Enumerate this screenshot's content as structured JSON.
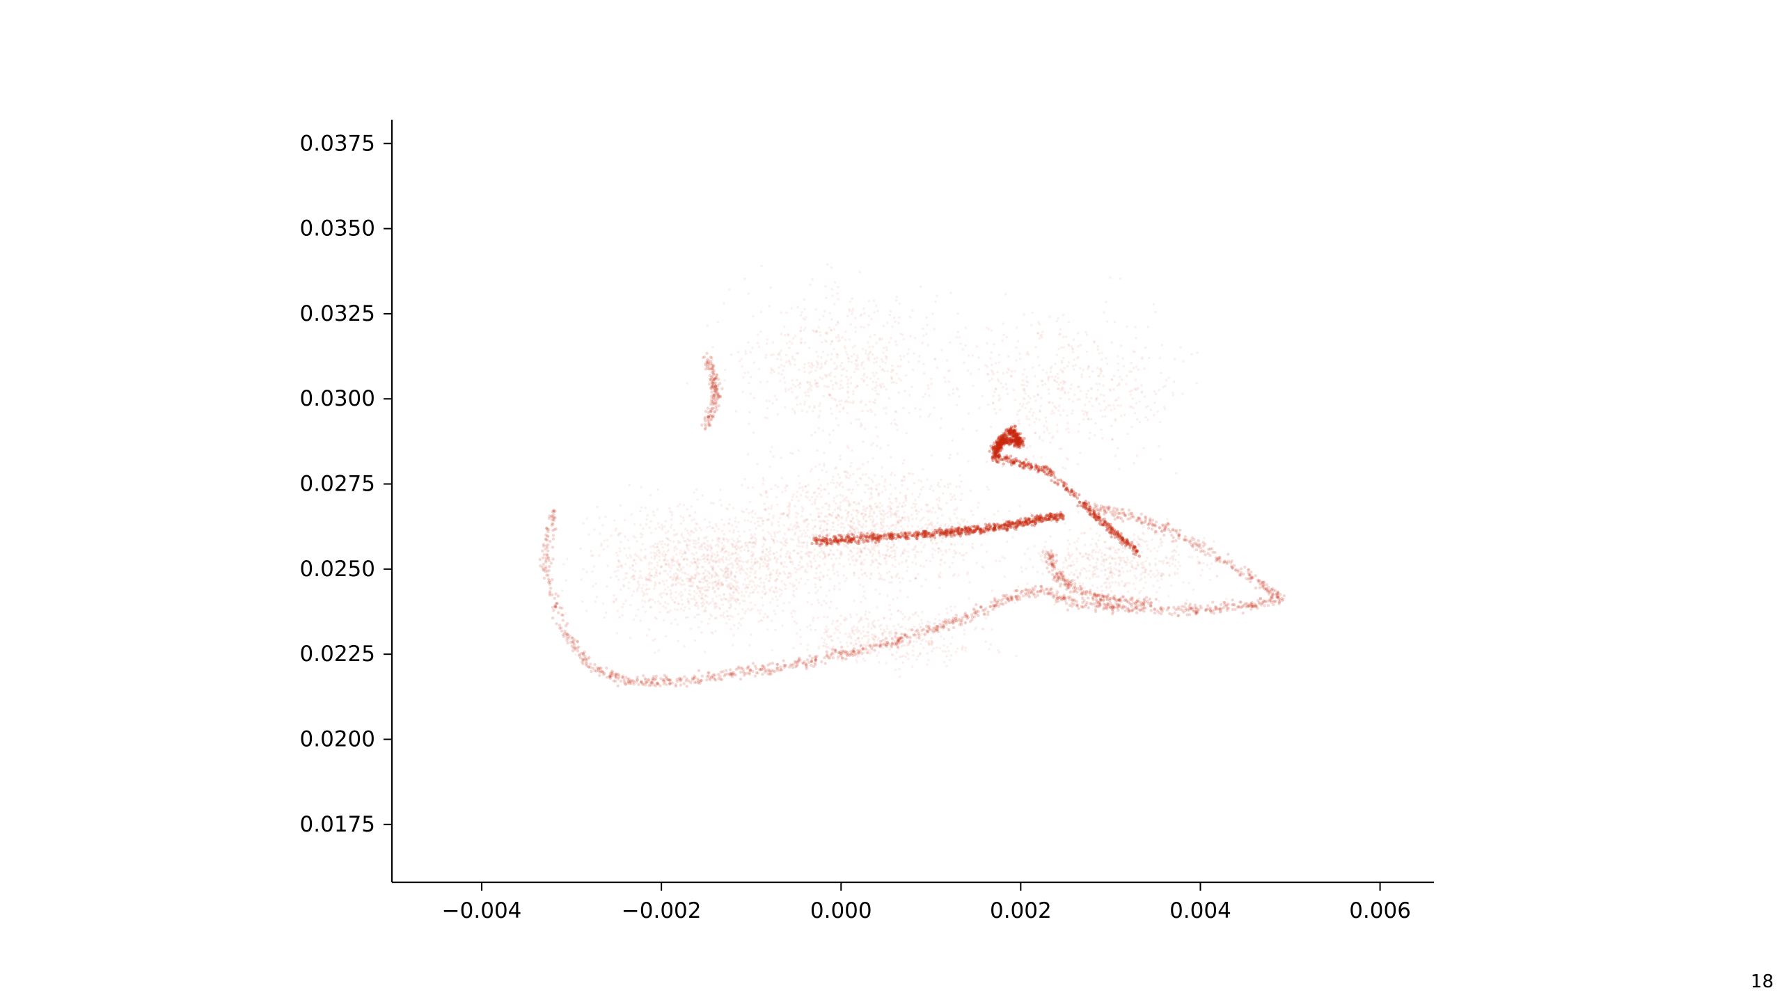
{
  "page": {
    "number": "18"
  },
  "chart_data": {
    "type": "scatter",
    "title": "",
    "xlabel": "",
    "ylabel": "",
    "xlim": [
      -0.005,
      0.0066
    ],
    "ylim": [
      0.0158,
      0.0382
    ],
    "xticks": [
      -0.004,
      -0.002,
      0.0,
      0.002,
      0.004,
      0.006
    ],
    "xtick_labels": [
      "−0.004",
      "−0.002",
      "0.000",
      "0.002",
      "0.004",
      "0.006"
    ],
    "yticks": [
      0.0175,
      0.02,
      0.0225,
      0.025,
      0.0275,
      0.03,
      0.0325,
      0.035,
      0.0375
    ],
    "ytick_labels": [
      "0.0175",
      "0.0200",
      "0.0225",
      "0.0250",
      "0.0275",
      "0.0300",
      "0.0325",
      "0.0350",
      "0.0375"
    ],
    "grid": false,
    "spines": "left-bottom",
    "point_color": "#c8290f",
    "description_points_approx": "dense cloud of semi-transparent points",
    "series": [
      {
        "role": "outer-boundary",
        "x": [
          -0.0032,
          -0.0033,
          -0.0031,
          -0.0028,
          -0.0024,
          -0.002,
          -0.0015,
          -0.001,
          -0.0005,
          0.0,
          0.0005,
          0.001,
          0.0014,
          0.0018,
          0.0022,
          0.0026,
          0.003,
          0.0035,
          0.004,
          0.0045,
          0.0049,
          0.0046,
          0.0041,
          0.0036,
          0.0032,
          0.0028
        ],
        "y": [
          0.0268,
          0.0252,
          0.0232,
          0.0222,
          0.0217,
          0.0217,
          0.0218,
          0.022,
          0.0222,
          0.0225,
          0.0228,
          0.0232,
          0.0236,
          0.0241,
          0.0244,
          0.024,
          0.0239,
          0.0238,
          0.0238,
          0.0239,
          0.0241,
          0.0247,
          0.0255,
          0.0262,
          0.0266,
          0.0268
        ]
      },
      {
        "role": "left-hook",
        "x": [
          -0.0015,
          -0.0014,
          -0.0014,
          -0.0015
        ],
        "y": [
          0.0312,
          0.0305,
          0.03,
          0.0292
        ]
      },
      {
        "role": "central-ridge",
        "x": [
          -0.0003,
          0.0002,
          0.0008,
          0.0013,
          0.0017,
          0.0021,
          0.0025
        ],
        "y": [
          0.0258,
          0.0259,
          0.026,
          0.0261,
          0.0262,
          0.0264,
          0.0266
        ]
      },
      {
        "role": "zigzag-spike",
        "x": [
          0.0017,
          0.0019,
          0.002,
          0.0018,
          0.0017,
          0.0023,
          0.0029,
          0.0033
        ],
        "y": [
          0.0285,
          0.0291,
          0.0287,
          0.0288,
          0.0283,
          0.0279,
          0.0264,
          0.0255
        ]
      },
      {
        "role": "lower-inner-arc",
        "x": [
          0.0023,
          0.0024,
          0.0026,
          0.003,
          0.0035
        ],
        "y": [
          0.0255,
          0.0248,
          0.0244,
          0.0241,
          0.024
        ]
      }
    ]
  }
}
